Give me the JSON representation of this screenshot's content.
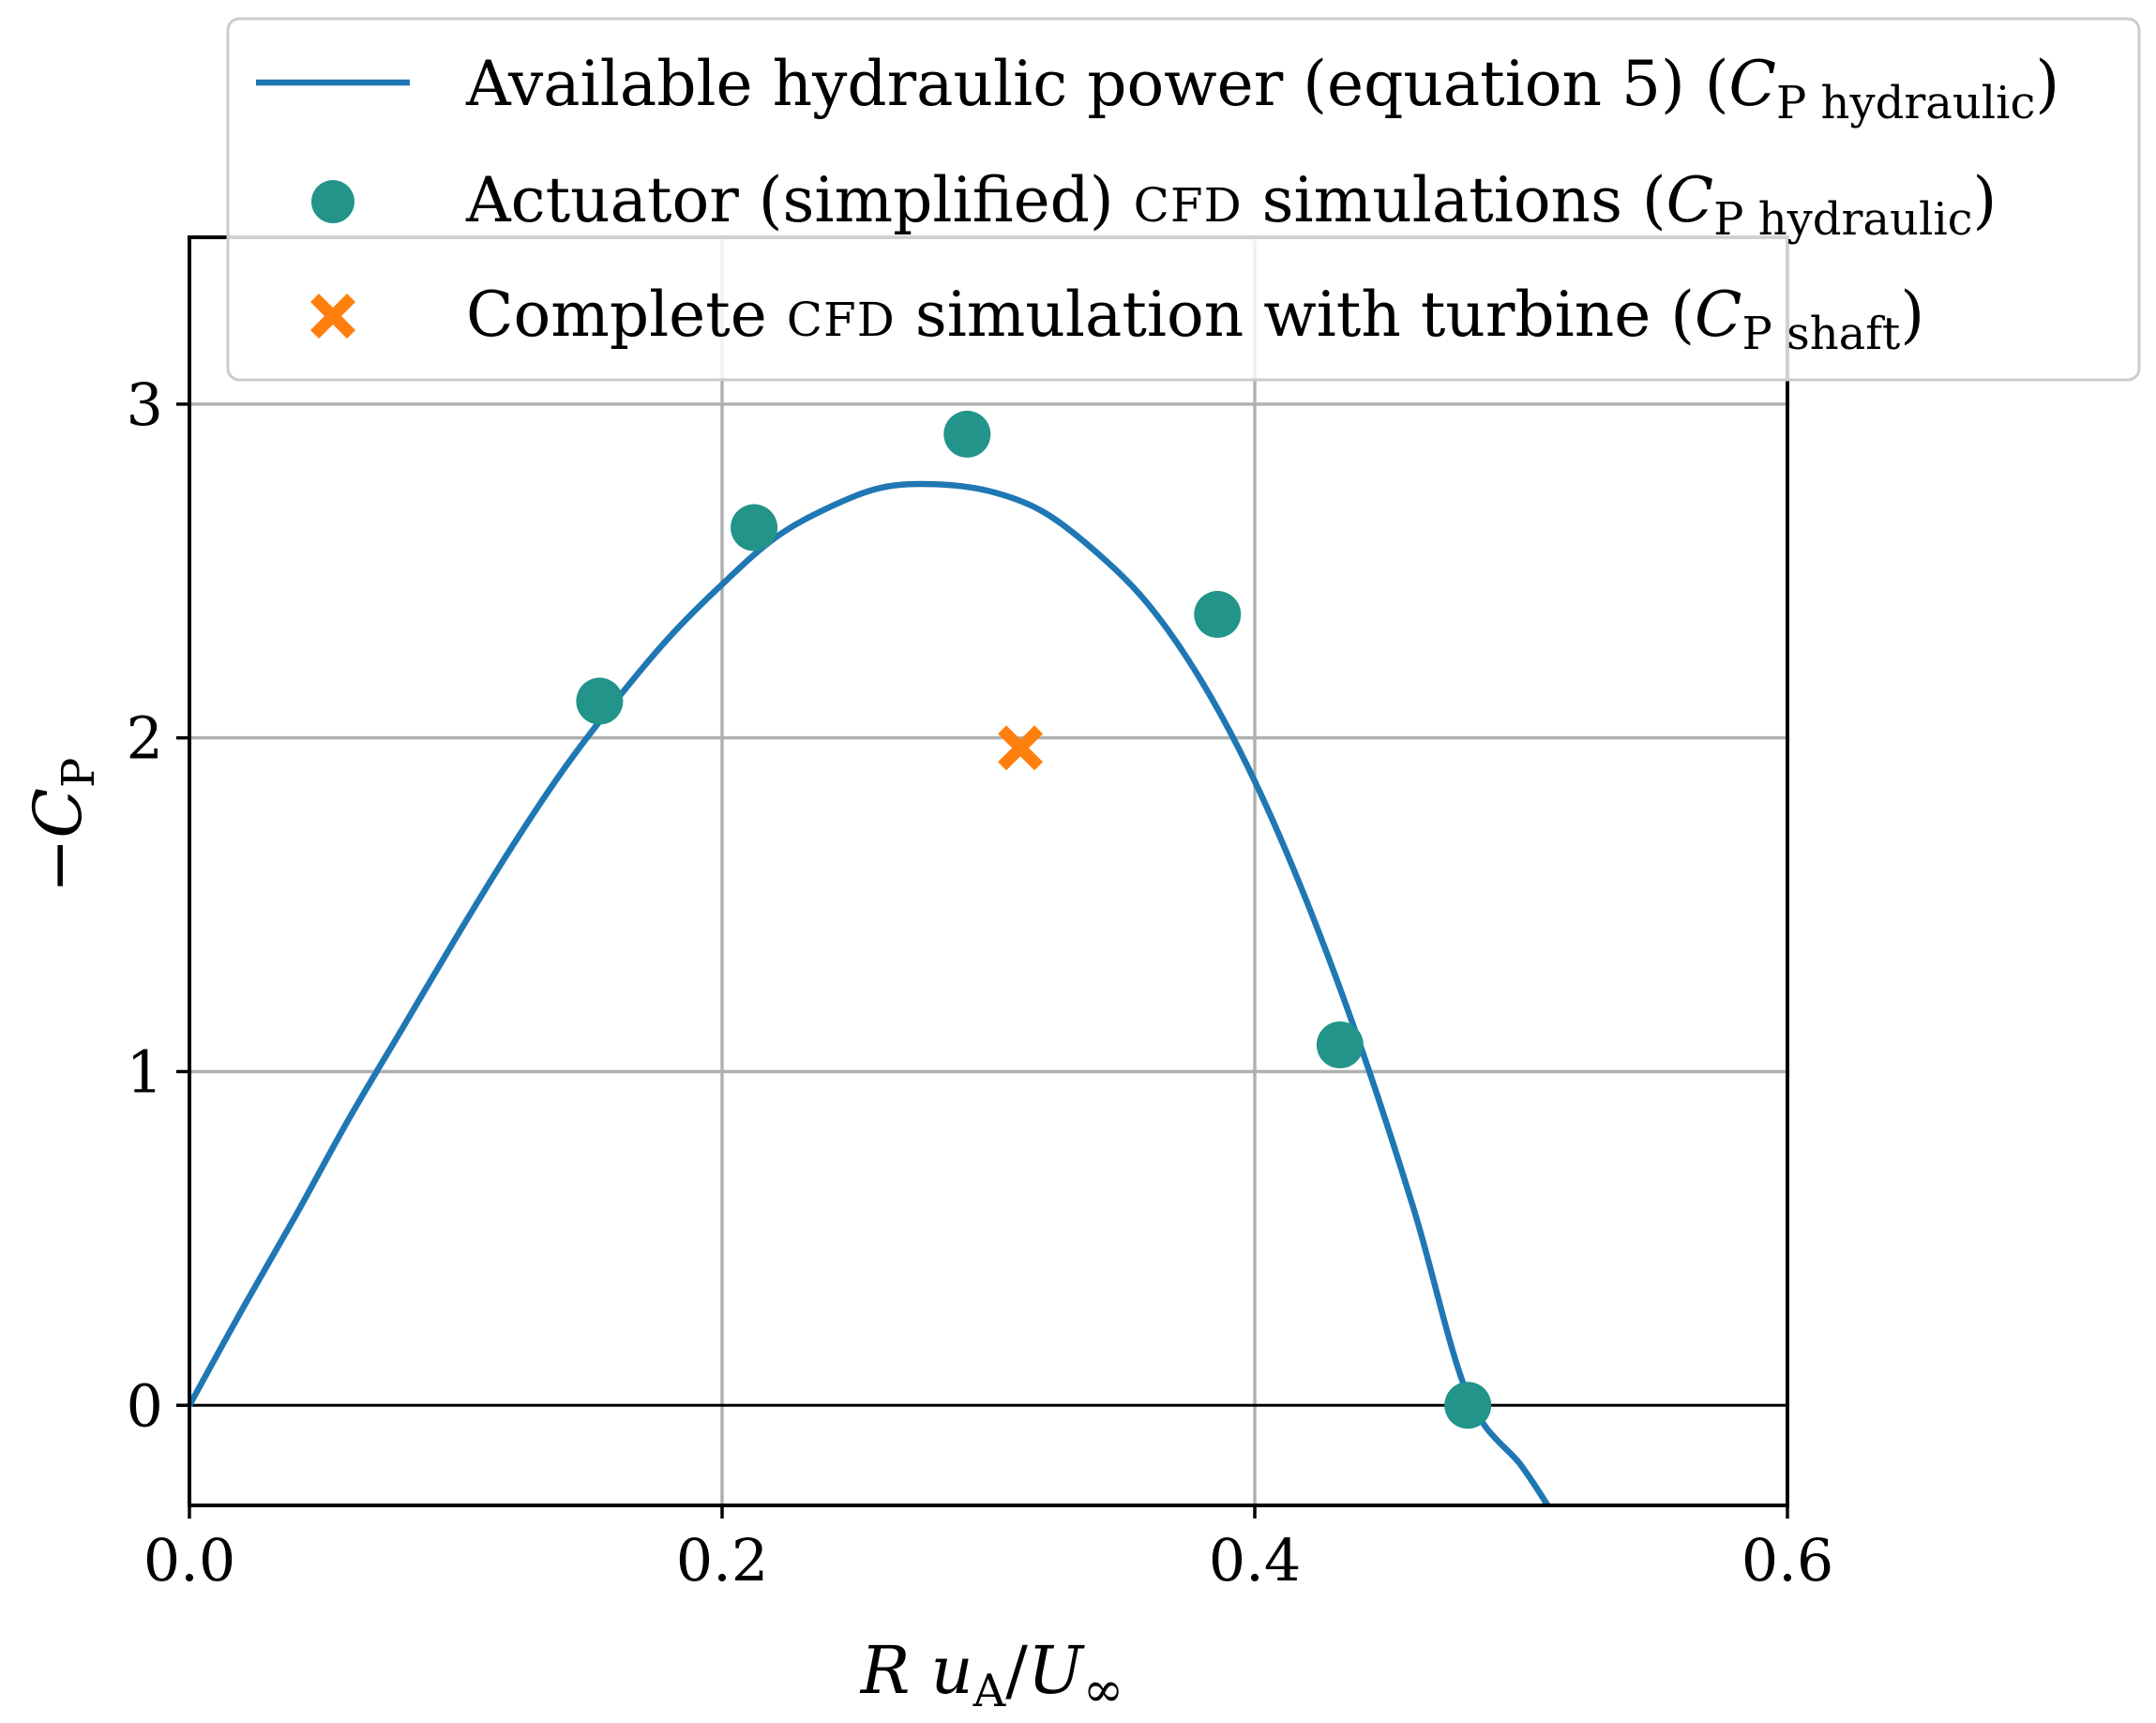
{
  "colors": {
    "curve": "#1f77b4",
    "actuator": "#22948a",
    "complete": "#ff7f0e",
    "grid": "#b0b0b0",
    "axis": "#000000"
  },
  "chart_data": {
    "type": "line",
    "title": "",
    "xlabel": {
      "main": "R",
      "var": "u",
      "var_sub": "A",
      "slash": "/",
      "den": "U",
      "den_sub": "∞"
    },
    "ylabel": {
      "minus": "−",
      "var": "C",
      "sub": "P"
    },
    "xlim": [
      0.0,
      0.6
    ],
    "ylim": [
      -0.3,
      3.5
    ],
    "xticks": [
      0.0,
      0.2,
      0.4,
      0.6
    ],
    "xtick_labels": [
      "0.0",
      "0.2",
      "0.4",
      "0.6"
    ],
    "yticks": [
      0,
      1,
      2,
      3
    ],
    "ytick_labels": [
      "0",
      "1",
      "2",
      "3"
    ],
    "grid": true,
    "zero_line": true,
    "legend_position": "top-right",
    "series": [
      {
        "name": "curve",
        "kind": "line",
        "label": {
          "text": "Available hydraulic power (equation 5) (",
          "var": "C",
          "sub": "P hydraulic",
          "close": ")"
        },
        "x": [
          0.0,
          0.02,
          0.04,
          0.06,
          0.08,
          0.1,
          0.12,
          0.14,
          0.16,
          0.18,
          0.2,
          0.22,
          0.24,
          0.26,
          0.28,
          0.3,
          0.32,
          0.34,
          0.36,
          0.38,
          0.4,
          0.42,
          0.44,
          0.46,
          0.48,
          0.5,
          0.51
        ],
        "y": [
          0.0,
          0.29,
          0.57,
          0.86,
          1.13,
          1.4,
          1.66,
          1.9,
          2.11,
          2.3,
          2.46,
          2.6,
          2.69,
          2.75,
          2.76,
          2.74,
          2.68,
          2.56,
          2.4,
          2.17,
          1.87,
          1.5,
          1.07,
          0.58,
          0.03,
          -0.18,
          -0.3
        ]
      },
      {
        "name": "actuator",
        "kind": "scatter",
        "marker": "circle",
        "label": {
          "text": "Actuator (simplified) ",
          "sc": "CFD",
          "text2": " simulations (",
          "var": "C",
          "sub": "P hydraulic",
          "close": ")"
        },
        "x": [
          0.154,
          0.212,
          0.292,
          0.386,
          0.432,
          0.48
        ],
        "y": [
          2.11,
          2.63,
          2.91,
          2.37,
          1.08,
          0.0
        ]
      },
      {
        "name": "complete",
        "kind": "scatter",
        "marker": "x",
        "label": {
          "text": "Complete ",
          "sc": "CFD",
          "text2": " simulation with turbine (",
          "var": "C",
          "sub": "P shaft",
          "close": ")"
        },
        "x": [
          0.312
        ],
        "y": [
          1.97
        ]
      }
    ]
  }
}
